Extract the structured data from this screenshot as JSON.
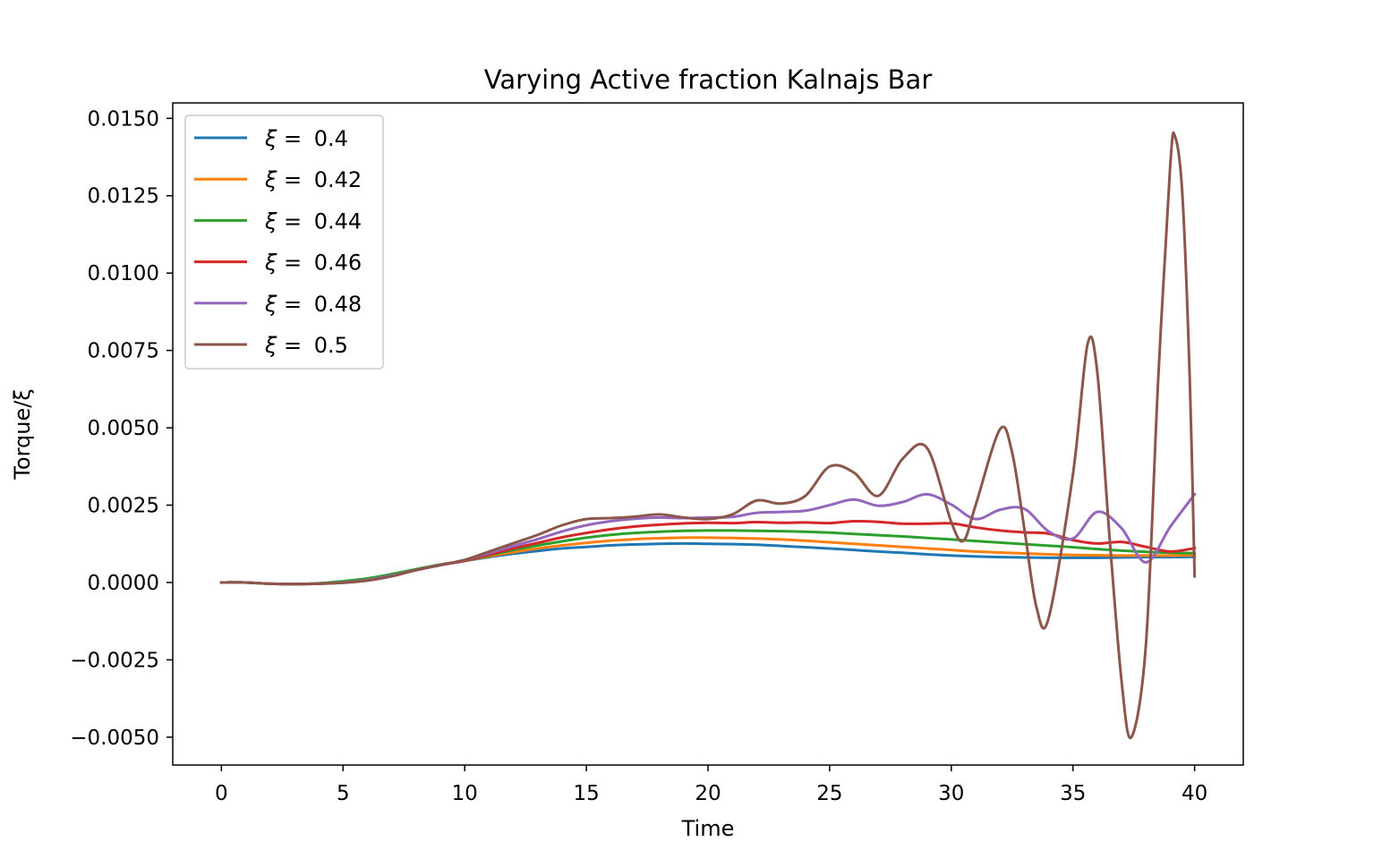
{
  "chart_data": {
    "type": "line",
    "title": "Varying Active fraction Kalnajs Bar",
    "xlabel": "Time",
    "ylabel": "Torque/ξ",
    "xlim": [
      -2,
      42
    ],
    "ylim": [
      -0.0059,
      0.0155
    ],
    "xticks": [
      0,
      5,
      10,
      15,
      20,
      25,
      30,
      35,
      40
    ],
    "xtick_labels": [
      "0",
      "5",
      "10",
      "15",
      "20",
      "25",
      "30",
      "35",
      "40"
    ],
    "yticks": [
      -0.005,
      -0.0025,
      0.0,
      0.0025,
      0.005,
      0.0075,
      0.01,
      0.0125,
      0.015
    ],
    "ytick_labels": [
      "−0.0050",
      "−0.0025",
      "0.0000",
      "0.0025",
      "0.0050",
      "0.0075",
      "0.0100",
      "0.0125",
      "0.0150"
    ],
    "grid": false,
    "legend_position": "top-left",
    "legend_prefix": "ξ = ",
    "series": [
      {
        "name": "0.4",
        "color": "#1f77b4",
        "points": [
          [
            0,
            0
          ],
          [
            1,
            0
          ],
          [
            2,
            -4e-05
          ],
          [
            3,
            -5e-05
          ],
          [
            4,
            -3e-05
          ],
          [
            5,
            3e-05
          ],
          [
            6,
            0.00012
          ],
          [
            7,
            0.00026
          ],
          [
            8,
            0.00042
          ],
          [
            9,
            0.00057
          ],
          [
            10,
            0.0007
          ],
          [
            11,
            0.00082
          ],
          [
            12,
            0.00093
          ],
          [
            13,
            0.00102
          ],
          [
            14,
            0.0011
          ],
          [
            15,
            0.00115
          ],
          [
            16,
            0.0012
          ],
          [
            17,
            0.00123
          ],
          [
            18,
            0.00125
          ],
          [
            19,
            0.00126
          ],
          [
            20,
            0.00125
          ],
          [
            21,
            0.00124
          ],
          [
            22,
            0.00122
          ],
          [
            23,
            0.00118
          ],
          [
            24,
            0.00114
          ],
          [
            25,
            0.0011
          ],
          [
            26,
            0.00105
          ],
          [
            27,
            0.001
          ],
          [
            28,
            0.00096
          ],
          [
            29,
            0.00091
          ],
          [
            30,
            0.00087
          ],
          [
            31,
            0.00084
          ],
          [
            32,
            0.00082
          ],
          [
            33,
            0.00081
          ],
          [
            34,
            0.0008
          ],
          [
            35,
            0.0008
          ],
          [
            36,
            0.0008
          ],
          [
            37,
            0.00081
          ],
          [
            38,
            0.00082
          ],
          [
            39,
            0.00082
          ],
          [
            40,
            0.00083
          ]
        ]
      },
      {
        "name": "0.42",
        "color": "#ff7f0e",
        "points": [
          [
            0,
            0
          ],
          [
            1,
            0
          ],
          [
            2,
            -4e-05
          ],
          [
            3,
            -5e-05
          ],
          [
            4,
            -3e-05
          ],
          [
            5,
            3e-05
          ],
          [
            6,
            0.00012
          ],
          [
            7,
            0.00026
          ],
          [
            8,
            0.00042
          ],
          [
            9,
            0.00057
          ],
          [
            10,
            0.0007
          ],
          [
            11,
            0.00085
          ],
          [
            12,
            0.00098
          ],
          [
            13,
            0.0011
          ],
          [
            14,
            0.0012
          ],
          [
            15,
            0.00128
          ],
          [
            16,
            0.00135
          ],
          [
            17,
            0.0014
          ],
          [
            18,
            0.00143
          ],
          [
            19,
            0.00145
          ],
          [
            20,
            0.00145
          ],
          [
            21,
            0.00144
          ],
          [
            22,
            0.00142
          ],
          [
            23,
            0.00139
          ],
          [
            24,
            0.00135
          ],
          [
            25,
            0.0013
          ],
          [
            26,
            0.00125
          ],
          [
            27,
            0.0012
          ],
          [
            28,
            0.00115
          ],
          [
            29,
            0.0011
          ],
          [
            30,
            0.00105
          ],
          [
            31,
            0.001
          ],
          [
            32,
            0.00097
          ],
          [
            33,
            0.00094
          ],
          [
            34,
            0.00091
          ],
          [
            35,
            0.00089
          ],
          [
            36,
            0.00088
          ],
          [
            37,
            0.00087
          ],
          [
            38,
            0.00087
          ],
          [
            39,
            0.00087
          ],
          [
            40,
            0.00088
          ]
        ]
      },
      {
        "name": "0.44",
        "color": "#2ca02c",
        "points": [
          [
            0,
            0
          ],
          [
            1,
            0
          ],
          [
            2,
            -4e-05
          ],
          [
            3,
            -5e-05
          ],
          [
            4,
            -3e-05
          ],
          [
            5,
            4e-05
          ],
          [
            6,
            0.00013
          ],
          [
            7,
            0.00027
          ],
          [
            8,
            0.00043
          ],
          [
            9,
            0.00058
          ],
          [
            10,
            0.0007
          ],
          [
            11,
            0.00088
          ],
          [
            12,
            0.00105
          ],
          [
            13,
            0.0012
          ],
          [
            14,
            0.00133
          ],
          [
            15,
            0.00145
          ],
          [
            16,
            0.00154
          ],
          [
            17,
            0.0016
          ],
          [
            18,
            0.00164
          ],
          [
            19,
            0.00167
          ],
          [
            20,
            0.00168
          ],
          [
            21,
            0.00168
          ],
          [
            22,
            0.00167
          ],
          [
            23,
            0.00166
          ],
          [
            24,
            0.00164
          ],
          [
            25,
            0.00161
          ],
          [
            26,
            0.00157
          ],
          [
            27,
            0.00153
          ],
          [
            28,
            0.00149
          ],
          [
            29,
            0.00144
          ],
          [
            30,
            0.00139
          ],
          [
            31,
            0.00134
          ],
          [
            32,
            0.00129
          ],
          [
            33,
            0.00124
          ],
          [
            34,
            0.00119
          ],
          [
            35,
            0.00114
          ],
          [
            36,
            0.00108
          ],
          [
            37,
            0.00103
          ],
          [
            38,
            0.00099
          ],
          [
            39,
            0.00096
          ],
          [
            40,
            0.00095
          ]
        ]
      },
      {
        "name": "0.46",
        "color": "#d62728",
        "points": [
          [
            0,
            0
          ],
          [
            1,
            0
          ],
          [
            2,
            -4e-05
          ],
          [
            3,
            -5e-05
          ],
          [
            4,
            -4e-05
          ],
          [
            5,
            0.0
          ],
          [
            6,
            8e-05
          ],
          [
            7,
            0.00022
          ],
          [
            8,
            0.0004
          ],
          [
            9,
            0.00056
          ],
          [
            10,
            0.0007
          ],
          [
            11,
            0.0009
          ],
          [
            12,
            0.0011
          ],
          [
            13,
            0.00128
          ],
          [
            14,
            0.00146
          ],
          [
            15,
            0.0016
          ],
          [
            16,
            0.00172
          ],
          [
            17,
            0.00181
          ],
          [
            18,
            0.00187
          ],
          [
            19,
            0.00191
          ],
          [
            20,
            0.00193
          ],
          [
            21,
            0.00192
          ],
          [
            22,
            0.00195
          ],
          [
            23,
            0.00193
          ],
          [
            24,
            0.00194
          ],
          [
            25,
            0.00192
          ],
          [
            26,
            0.00198
          ],
          [
            27,
            0.00196
          ],
          [
            28,
            0.0019
          ],
          [
            29,
            0.0019
          ],
          [
            30,
            0.00191
          ],
          [
            31,
            0.00178
          ],
          [
            32,
            0.00168
          ],
          [
            33,
            0.00162
          ],
          [
            34,
            0.00158
          ],
          [
            35,
            0.00137
          ],
          [
            36,
            0.00126
          ],
          [
            37,
            0.00131
          ],
          [
            38,
            0.00115
          ],
          [
            39,
            0.001
          ],
          [
            40,
            0.00111
          ]
        ]
      },
      {
        "name": "0.48",
        "color": "#9467bd",
        "points": [
          [
            0,
            0
          ],
          [
            1,
            0
          ],
          [
            2,
            -4e-05
          ],
          [
            3,
            -5e-05
          ],
          [
            4,
            -4e-05
          ],
          [
            5,
            0.0
          ],
          [
            6,
            8e-05
          ],
          [
            7,
            0.00022
          ],
          [
            8,
            0.0004
          ],
          [
            9,
            0.00056
          ],
          [
            10,
            0.00072
          ],
          [
            11,
            0.00095
          ],
          [
            12,
            0.00118
          ],
          [
            13,
            0.0014
          ],
          [
            14,
            0.00165
          ],
          [
            15,
            0.00185
          ],
          [
            16,
            0.00198
          ],
          [
            17,
            0.00206
          ],
          [
            18,
            0.0021
          ],
          [
            19,
            0.00208
          ],
          [
            20,
            0.0021
          ],
          [
            21,
            0.00212
          ],
          [
            22,
            0.00225
          ],
          [
            23,
            0.00228
          ],
          [
            24,
            0.00232
          ],
          [
            25,
            0.0025
          ],
          [
            26,
            0.00268
          ],
          [
            27,
            0.00248
          ],
          [
            28,
            0.0026
          ],
          [
            29,
            0.00285
          ],
          [
            30,
            0.00252
          ],
          [
            31,
            0.00205
          ],
          [
            32,
            0.00235
          ],
          [
            33,
            0.00238
          ],
          [
            34,
            0.00165
          ],
          [
            35,
            0.00142
          ],
          [
            36,
            0.00228
          ],
          [
            37,
            0.00175
          ],
          [
            38,
            0.00065
          ],
          [
            39,
            0.0018
          ],
          [
            40,
            0.00285
          ]
        ]
      },
      {
        "name": "0.5",
        "color": "#8c564b",
        "points": [
          [
            0,
            0
          ],
          [
            1,
            0
          ],
          [
            2,
            -4e-05
          ],
          [
            3,
            -5e-05
          ],
          [
            4,
            -4e-05
          ],
          [
            5,
            -1e-05
          ],
          [
            6,
            6e-05
          ],
          [
            7,
            0.0002
          ],
          [
            8,
            0.0004
          ],
          [
            9,
            0.00057
          ],
          [
            10,
            0.00073
          ],
          [
            11,
            0.001
          ],
          [
            12,
            0.00127
          ],
          [
            13,
            0.00154
          ],
          [
            14,
            0.00185
          ],
          [
            15,
            0.00205
          ],
          [
            16,
            0.00208
          ],
          [
            17,
            0.00213
          ],
          [
            18,
            0.0022
          ],
          [
            19,
            0.0021
          ],
          [
            20,
            0.00205
          ],
          [
            21,
            0.0022
          ],
          [
            22,
            0.00265
          ],
          [
            23,
            0.00255
          ],
          [
            24,
            0.0028
          ],
          [
            25,
            0.00375
          ],
          [
            26,
            0.00355
          ],
          [
            27,
            0.0028
          ],
          [
            28,
            0.004
          ],
          [
            29,
            0.00435
          ],
          [
            30,
            0.00195
          ],
          [
            30.5,
            0.00135
          ],
          [
            31,
            0.0025
          ],
          [
            32,
            0.00495
          ],
          [
            32.5,
            0.0042
          ],
          [
            33,
            0.00175
          ],
          [
            33.5,
            -0.0008
          ],
          [
            34,
            -0.00115
          ],
          [
            35,
            0.0035
          ],
          [
            35.6,
            0.0077
          ],
          [
            36,
            0.0068
          ],
          [
            36.5,
            0.0015
          ],
          [
            37,
            -0.0032
          ],
          [
            37.4,
            -0.005
          ],
          [
            38,
            -0.002
          ],
          [
            38.5,
            0.0065
          ],
          [
            39,
            0.0135
          ],
          [
            39.2,
            0.0144
          ],
          [
            39.5,
            0.0125
          ],
          [
            39.8,
            0.0066
          ],
          [
            40,
            0.0002
          ]
        ]
      }
    ]
  }
}
